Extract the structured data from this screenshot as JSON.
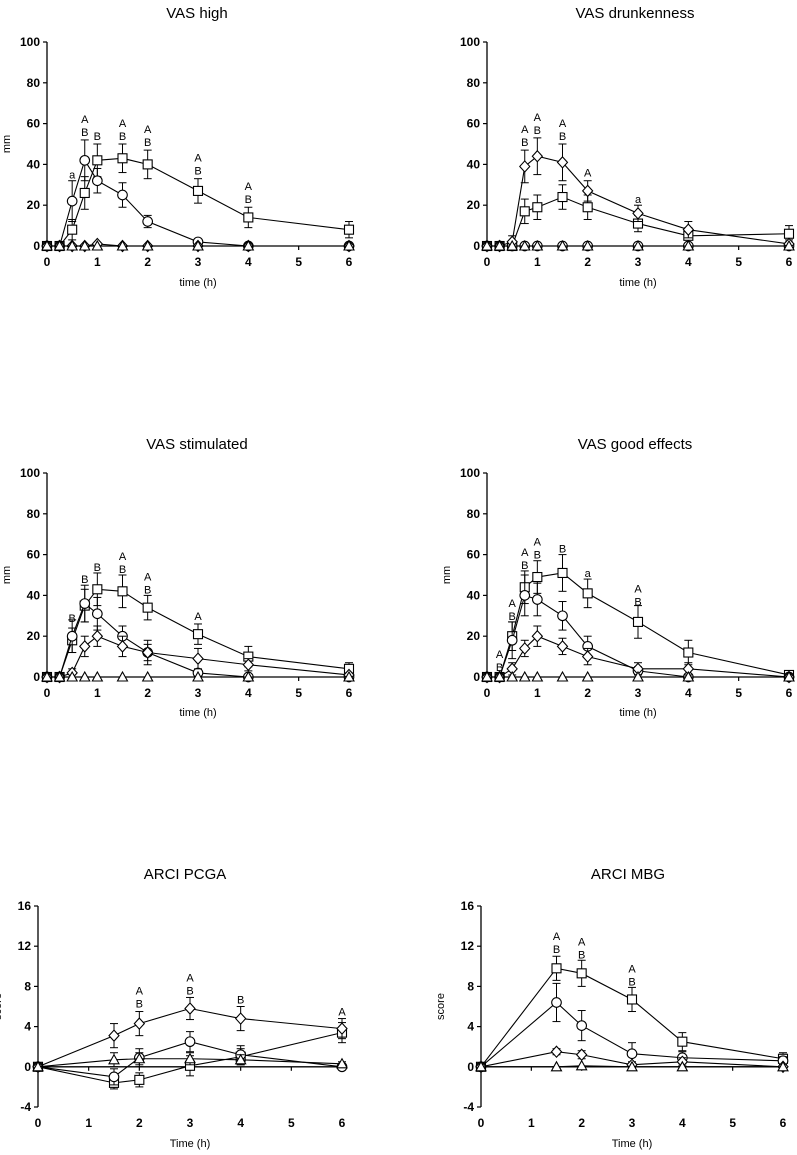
{
  "chart_data": [
    {
      "type": "line",
      "title": "VAS high",
      "xlabel": "time (h)",
      "ylabel": "mm",
      "xlim": [
        0,
        6
      ],
      "ylim": [
        0,
        100
      ],
      "xticks": [
        "0",
        "1",
        "2",
        "3",
        "4",
        "5",
        "6"
      ],
      "yticks": [
        "0",
        "20",
        "40",
        "60",
        "80",
        "100"
      ],
      "series": [
        {
          "marker": "square",
          "x": [
            0,
            0.25,
            0.5,
            0.75,
            1,
            1.5,
            2,
            3,
            4,
            6
          ],
          "y": [
            0,
            0,
            8,
            26,
            42,
            43,
            40,
            27,
            14,
            8
          ],
          "err": [
            0,
            0,
            5,
            8,
            8,
            7,
            7,
            6,
            5,
            4
          ]
        },
        {
          "marker": "circle",
          "x": [
            0,
            0.25,
            0.5,
            0.75,
            1,
            1.5,
            2,
            3,
            4,
            6
          ],
          "y": [
            0,
            0,
            22,
            42,
            32,
            25,
            12,
            2,
            0,
            0
          ],
          "err": [
            0,
            0,
            10,
            10,
            6,
            6,
            3,
            1,
            0,
            0
          ]
        },
        {
          "marker": "diamond",
          "x": [
            0,
            0.25,
            0.5,
            0.75,
            1,
            1.5,
            2,
            3,
            4,
            6
          ],
          "y": [
            0,
            0,
            0,
            0,
            1,
            0,
            0,
            0,
            0,
            0
          ],
          "err": [
            0,
            0,
            0,
            0,
            0,
            0,
            0,
            0,
            0,
            0
          ]
        },
        {
          "marker": "triangle",
          "x": [
            0,
            0.25,
            0.5,
            0.75,
            1,
            1.5,
            2,
            3,
            4,
            6
          ],
          "y": [
            0,
            0,
            0,
            0,
            0,
            0,
            0,
            0,
            0,
            0
          ],
          "err": [
            0,
            0,
            0,
            0,
            0,
            0,
            0,
            0,
            0,
            0
          ]
        }
      ],
      "annotations": [
        {
          "x": 0.5,
          "y": 33,
          "lines": [
            "a"
          ]
        },
        {
          "x": 0.75,
          "y": 54,
          "lines": [
            "A",
            "B"
          ]
        },
        {
          "x": 1,
          "y": 52,
          "lines": [
            "B"
          ]
        },
        {
          "x": 1.5,
          "y": 52,
          "lines": [
            "A",
            "B"
          ]
        },
        {
          "x": 2,
          "y": 49,
          "lines": [
            "A",
            "B"
          ]
        },
        {
          "x": 3,
          "y": 35,
          "lines": [
            "A",
            "B"
          ]
        },
        {
          "x": 4,
          "y": 21,
          "lines": [
            "A",
            "B"
          ]
        }
      ]
    },
    {
      "type": "line",
      "title": "VAS drunkenness",
      "xlabel": "time (h)",
      "ylabel": "",
      "xlim": [
        0,
        6
      ],
      "ylim": [
        0,
        100
      ],
      "xticks": [
        "0",
        "1",
        "2",
        "3",
        "4",
        "5",
        "6"
      ],
      "yticks": [
        "0",
        "20",
        "40",
        "60",
        "80",
        "100"
      ],
      "series": [
        {
          "marker": "square",
          "x": [
            0,
            0.25,
            0.5,
            0.75,
            1,
            1.5,
            2,
            3,
            4,
            6
          ],
          "y": [
            0,
            0,
            0,
            17,
            19,
            24,
            19,
            11,
            5,
            6
          ],
          "err": [
            0,
            0,
            0,
            6,
            6,
            6,
            6,
            4,
            4,
            4
          ]
        },
        {
          "marker": "circle",
          "x": [
            0,
            0.25,
            0.5,
            0.75,
            1,
            1.5,
            2,
            3,
            4,
            6
          ],
          "y": [
            0,
            0,
            0,
            0,
            0,
            0,
            0,
            0,
            0,
            0
          ],
          "err": [
            0,
            0,
            0,
            0,
            0,
            0,
            0,
            0,
            0,
            0
          ]
        },
        {
          "marker": "diamond",
          "x": [
            0,
            0.25,
            0.5,
            0.75,
            1,
            1.5,
            2,
            3,
            4,
            6
          ],
          "y": [
            0,
            0,
            2,
            39,
            44,
            41,
            27,
            16,
            8,
            1
          ],
          "err": [
            0,
            0,
            3,
            8,
            9,
            9,
            5,
            4,
            4,
            2
          ]
        },
        {
          "marker": "triangle",
          "x": [
            0,
            0.25,
            0.5,
            0.75,
            1,
            1.5,
            2,
            3,
            4,
            6
          ],
          "y": [
            0,
            0,
            0,
            0,
            0,
            0,
            0,
            0,
            0,
            0
          ],
          "err": [
            0,
            0,
            0,
            0,
            0,
            0,
            0,
            0,
            0,
            0
          ]
        }
      ],
      "annotations": [
        {
          "x": 0.75,
          "y": 49,
          "lines": [
            "A",
            "B"
          ]
        },
        {
          "x": 1,
          "y": 55,
          "lines": [
            "A",
            "B"
          ]
        },
        {
          "x": 1.5,
          "y": 52,
          "lines": [
            "A",
            "B"
          ]
        },
        {
          "x": 2,
          "y": 34,
          "lines": [
            "A"
          ]
        },
        {
          "x": 3,
          "y": 21,
          "lines": [
            "a"
          ]
        }
      ]
    },
    {
      "type": "line",
      "title": "VAS stimulated",
      "xlabel": "time (h)",
      "ylabel": "mm",
      "xlim": [
        0,
        6
      ],
      "ylim": [
        0,
        100
      ],
      "xticks": [
        "0",
        "1",
        "2",
        "3",
        "4",
        "5",
        "6"
      ],
      "yticks": [
        "0",
        "20",
        "40",
        "60",
        "80",
        "100"
      ],
      "series": [
        {
          "marker": "square",
          "x": [
            0,
            0.25,
            0.5,
            0.75,
            1,
            1.5,
            2,
            3,
            4,
            6
          ],
          "y": [
            0,
            0,
            18,
            35,
            43,
            42,
            34,
            21,
            10,
            4
          ],
          "err": [
            0,
            0,
            6,
            8,
            8,
            8,
            6,
            5,
            5,
            3
          ]
        },
        {
          "marker": "circle",
          "x": [
            0,
            0.25,
            0.5,
            0.75,
            1,
            1.5,
            2,
            3,
            4,
            6
          ],
          "y": [
            0,
            0,
            20,
            36,
            31,
            20,
            12,
            2,
            0,
            0
          ],
          "err": [
            0,
            0,
            8,
            9,
            8,
            5,
            4,
            1,
            0,
            0
          ]
        },
        {
          "marker": "diamond",
          "x": [
            0,
            0.25,
            0.5,
            0.75,
            1,
            1.5,
            2,
            3,
            4,
            6
          ],
          "y": [
            0,
            0,
            2,
            15,
            20,
            15,
            12,
            9,
            6,
            1
          ],
          "err": [
            0,
            0,
            2,
            5,
            5,
            5,
            6,
            5,
            3,
            1
          ]
        },
        {
          "marker": "triangle",
          "x": [
            0,
            0.25,
            0.5,
            0.75,
            1,
            1.5,
            2,
            3,
            4,
            6
          ],
          "y": [
            0,
            0,
            0,
            0,
            0,
            0,
            0,
            0,
            0,
            0
          ],
          "err": [
            0,
            0,
            0,
            0,
            0,
            0,
            0,
            0,
            0,
            0
          ]
        }
      ],
      "annotations": [
        {
          "x": 0.5,
          "y": 27,
          "lines": [
            "B"
          ]
        },
        {
          "x": 0.75,
          "y": 46,
          "lines": [
            "B"
          ]
        },
        {
          "x": 1,
          "y": 52,
          "lines": [
            "B"
          ]
        },
        {
          "x": 1.5,
          "y": 51,
          "lines": [
            "A",
            "B"
          ]
        },
        {
          "x": 2,
          "y": 41,
          "lines": [
            "A",
            "B"
          ]
        },
        {
          "x": 3,
          "y": 28,
          "lines": [
            "A"
          ]
        }
      ]
    },
    {
      "type": "line",
      "title": "VAS good effects",
      "xlabel": "time (h)",
      "ylabel": "mm",
      "xlim": [
        0,
        6
      ],
      "ylim": [
        0,
        100
      ],
      "xticks": [
        "0",
        "1",
        "2",
        "3",
        "4",
        "5",
        "6"
      ],
      "yticks": [
        "0",
        "20",
        "40",
        "60",
        "80",
        "100"
      ],
      "series": [
        {
          "marker": "square",
          "x": [
            0,
            0.25,
            0.5,
            0.75,
            1,
            1.5,
            2,
            3,
            4,
            6
          ],
          "y": [
            0,
            0,
            20,
            44,
            49,
            51,
            41,
            27,
            12,
            1
          ],
          "err": [
            0,
            0,
            7,
            8,
            8,
            9,
            7,
            8,
            6,
            1
          ]
        },
        {
          "marker": "circle",
          "x": [
            0,
            0.25,
            0.5,
            0.75,
            1,
            1.5,
            2,
            3,
            4,
            6
          ],
          "y": [
            0,
            0,
            18,
            40,
            38,
            30,
            15,
            3,
            0,
            0
          ],
          "err": [
            0,
            0,
            9,
            10,
            8,
            7,
            5,
            2,
            0,
            0
          ]
        },
        {
          "marker": "diamond",
          "x": [
            0,
            0.25,
            0.5,
            0.75,
            1,
            1.5,
            2,
            3,
            4,
            6
          ],
          "y": [
            0,
            0,
            4,
            14,
            20,
            15,
            10,
            4,
            4,
            0
          ],
          "err": [
            0,
            0,
            3,
            4,
            5,
            4,
            4,
            3,
            3,
            0
          ]
        },
        {
          "marker": "triangle",
          "x": [
            0,
            0.25,
            0.5,
            0.75,
            1,
            1.5,
            2,
            3,
            4,
            6
          ],
          "y": [
            0,
            0,
            0,
            0,
            0,
            0,
            0,
            0,
            0,
            0
          ],
          "err": [
            0,
            0,
            0,
            0,
            0,
            0,
            0,
            0,
            0,
            0
          ]
        }
      ],
      "annotations": [
        {
          "x": 0.25,
          "y": 3,
          "lines": [
            "A",
            "B"
          ]
        },
        {
          "x": 0.5,
          "y": 28,
          "lines": [
            "A",
            "B"
          ]
        },
        {
          "x": 0.75,
          "y": 53,
          "lines": [
            "A",
            "B"
          ]
        },
        {
          "x": 1,
          "y": 58,
          "lines": [
            "A",
            "B"
          ]
        },
        {
          "x": 1.5,
          "y": 61,
          "lines": [
            "B"
          ]
        },
        {
          "x": 2,
          "y": 49,
          "lines": [
            "a"
          ]
        },
        {
          "x": 3,
          "y": 35,
          "lines": [
            "A",
            "B"
          ]
        }
      ]
    },
    {
      "type": "line",
      "title": "ARCI PCGA",
      "xlabel": "Time (h)",
      "ylabel": "score",
      "xlim": [
        0,
        6
      ],
      "ylim": [
        -4,
        16
      ],
      "xticks": [
        "0",
        "1",
        "2",
        "3",
        "4",
        "5",
        "6"
      ],
      "yticks": [
        "-4",
        "0",
        "4",
        "8",
        "12",
        "16"
      ],
      "series": [
        {
          "marker": "square",
          "x": [
            0,
            1.5,
            2,
            3,
            4,
            6
          ],
          "y": [
            0,
            -1.6,
            -1.3,
            0.1,
            1.0,
            3.4
          ],
          "err": [
            0,
            0.6,
            0.7,
            1.0,
            0.8,
            1.0
          ]
        },
        {
          "marker": "circle",
          "x": [
            0,
            1.5,
            2,
            3,
            4,
            6
          ],
          "y": [
            0,
            -1.0,
            0.9,
            2.5,
            1.2,
            0
          ],
          "err": [
            0,
            0.8,
            0.9,
            1.0,
            0.9,
            0
          ]
        },
        {
          "marker": "diamond",
          "x": [
            0,
            1.5,
            2,
            3,
            4,
            6
          ],
          "y": [
            0,
            3.1,
            4.3,
            5.8,
            4.8,
            3.8
          ],
          "err": [
            0,
            1.2,
            1.2,
            1.1,
            1.2,
            1.0
          ]
        },
        {
          "marker": "triangle",
          "x": [
            0,
            1.5,
            2,
            3,
            4,
            6
          ],
          "y": [
            0,
            0.7,
            0.8,
            0.8,
            0.7,
            0.3
          ],
          "err": [
            0,
            0.7,
            0.6,
            0.6,
            0.5,
            0.2
          ]
        }
      ],
      "annotations": [
        {
          "x": 2,
          "y": 5.9,
          "lines": [
            "A",
            "B"
          ]
        },
        {
          "x": 3,
          "y": 7.2,
          "lines": [
            "A",
            "B"
          ]
        },
        {
          "x": 4,
          "y": 6.3,
          "lines": [
            "B"
          ]
        },
        {
          "x": 6,
          "y": 5.1,
          "lines": [
            "A"
          ]
        }
      ]
    },
    {
      "type": "line",
      "title": "ARCI MBG",
      "xlabel": "Time (h)",
      "ylabel": "score",
      "xlim": [
        0,
        6
      ],
      "ylim": [
        -4,
        16
      ],
      "xticks": [
        "0",
        "1",
        "2",
        "3",
        "4",
        "5",
        "6"
      ],
      "yticks": [
        "-4",
        "0",
        "4",
        "8",
        "12",
        "16"
      ],
      "series": [
        {
          "marker": "square",
          "x": [
            0,
            1.5,
            2,
            3,
            4,
            6
          ],
          "y": [
            0,
            9.8,
            9.3,
            6.7,
            2.5,
            0.8
          ],
          "err": [
            0,
            1.2,
            1.3,
            1.2,
            0.9,
            0.6
          ]
        },
        {
          "marker": "circle",
          "x": [
            0,
            1.5,
            2,
            3,
            4,
            6
          ],
          "y": [
            0,
            6.4,
            4.1,
            1.3,
            0.9,
            0.6
          ],
          "err": [
            0,
            1.9,
            1.5,
            1.1,
            0.6,
            0.4
          ]
        },
        {
          "marker": "diamond",
          "x": [
            0,
            1.5,
            2,
            3,
            4,
            6
          ],
          "y": [
            0,
            1.5,
            1.2,
            0.2,
            0.5,
            0
          ],
          "err": [
            0,
            0.3,
            0.4,
            0.3,
            0.4,
            0
          ]
        },
        {
          "marker": "triangle",
          "x": [
            0,
            1.5,
            2,
            3,
            4,
            6
          ],
          "y": [
            0,
            0,
            0.1,
            0,
            0,
            0
          ],
          "err": [
            0,
            0,
            0,
            0,
            0,
            0
          ]
        }
      ],
      "annotations": [
        {
          "x": 1.5,
          "y": 11.3,
          "lines": [
            "A",
            "B"
          ]
        },
        {
          "x": 2,
          "y": 10.8,
          "lines": [
            "A",
            "B"
          ]
        },
        {
          "x": 3,
          "y": 8.1,
          "lines": [
            "A",
            "B"
          ]
        }
      ]
    }
  ]
}
